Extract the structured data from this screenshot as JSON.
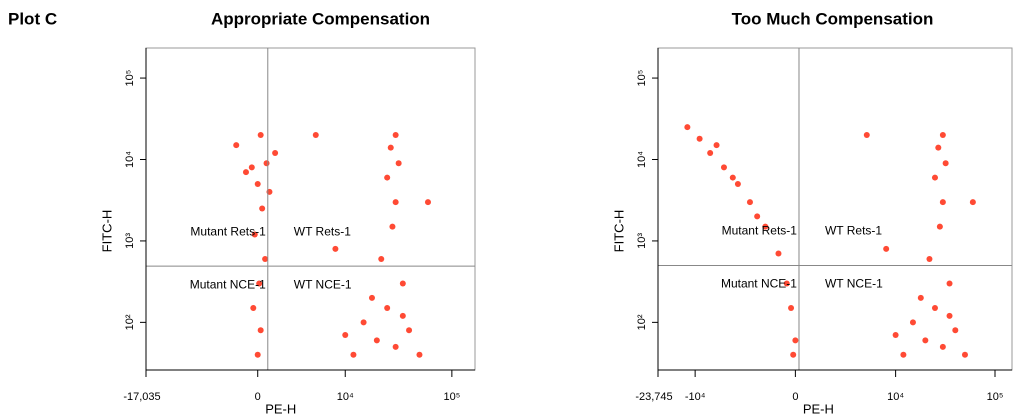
{
  "title": "Plot C",
  "chart_data": [
    {
      "type": "scatter",
      "title": "Appropriate Compensation",
      "xlabel": "PE-H",
      "ylabel": "FITC-H",
      "xscale": "biexponential",
      "yscale": "log",
      "color": "#ff2a10",
      "xlim": [
        -17035,
        164000
      ],
      "ylim": [
        26,
        234000
      ],
      "xticks": [
        {
          "value": -17035,
          "label": "-17,035"
        },
        0,
        {
          "value": 10000,
          "label": "10⁴"
        },
        {
          "value": 100000,
          "label": "10⁵"
        }
      ],
      "yticks": [
        {
          "value": 100,
          "label": "10²"
        },
        {
          "value": 1000,
          "label": "10³"
        },
        {
          "value": 10000,
          "label": "10⁴"
        },
        {
          "value": 100000,
          "label": "10⁵"
        }
      ],
      "gates": {
        "x": 684,
        "y": 490
      },
      "quadrant_labels": [
        "Mutant Rets-1",
        "WT Rets-1",
        "Mutant NCE-1",
        "WT NCE-1"
      ],
      "x": [
        0,
        200,
        -300,
        100,
        500,
        -200,
        300,
        0,
        -800,
        600,
        1200,
        -1500,
        200,
        -400,
        800,
        28000,
        30000,
        25000,
        32000,
        27000,
        30000,
        22000,
        35000,
        12000,
        20000,
        30000,
        40000,
        15000,
        25000,
        50000,
        18000,
        10000,
        35000,
        60000,
        5000,
        8000
      ],
      "y": [
        40,
        80,
        150,
        300,
        600,
        1200,
        2500,
        5000,
        7000,
        9000,
        12000,
        15000,
        20000,
        8000,
        4000,
        1500,
        3000,
        6000,
        9000,
        14000,
        20000,
        600,
        300,
        40,
        60,
        50,
        80,
        100,
        150,
        40,
        200,
        70,
        120,
        3000,
        20000,
        800
      ]
    },
    {
      "type": "scatter",
      "title": "Too Much Compensation",
      "xlabel": "PE-H",
      "ylabel": "FITC-H",
      "xscale": "biexponential",
      "yscale": "log",
      "color": "#ff2a10",
      "xlim": [
        -23745,
        148000
      ],
      "ylim": [
        26,
        234000
      ],
      "xticks": [
        {
          "value": -23745,
          "label": "-23,745"
        },
        {
          "value": -10000,
          "label": "-10⁴"
        },
        0,
        {
          "value": 10000,
          "label": "10⁴"
        },
        {
          "value": 100000,
          "label": "10⁵"
        }
      ],
      "yticks": [
        {
          "value": 100,
          "label": "10²"
        },
        {
          "value": 1000,
          "label": "10³"
        },
        {
          "value": 10000,
          "label": "10⁴"
        },
        {
          "value": 100000,
          "label": "10⁵"
        }
      ],
      "gates": {
        "x": 167,
        "y": 500
      },
      "quadrant_labels": [
        "Mutant Rets-1",
        "WT Rets-1",
        "Mutant NCE-1",
        "WT NCE-1"
      ],
      "x": [
        -12000,
        -9000,
        -7000,
        -5000,
        -3500,
        -2500,
        -1500,
        -800,
        -400,
        -200,
        0,
        -100,
        -6000,
        -4000,
        -2000,
        28000,
        30000,
        25000,
        32000,
        27000,
        30000,
        22000,
        35000,
        12000,
        20000,
        30000,
        40000,
        15000,
        25000,
        50000,
        18000,
        10000,
        35000,
        60000,
        5000,
        8000
      ],
      "y": [
        25000,
        18000,
        12000,
        8000,
        5000,
        3000,
        1500,
        700,
        300,
        150,
        60,
        40,
        15000,
        6000,
        2000,
        1500,
        3000,
        6000,
        9000,
        14000,
        20000,
        600,
        300,
        40,
        60,
        50,
        80,
        100,
        150,
        40,
        200,
        70,
        120,
        3000,
        20000,
        800
      ]
    }
  ]
}
